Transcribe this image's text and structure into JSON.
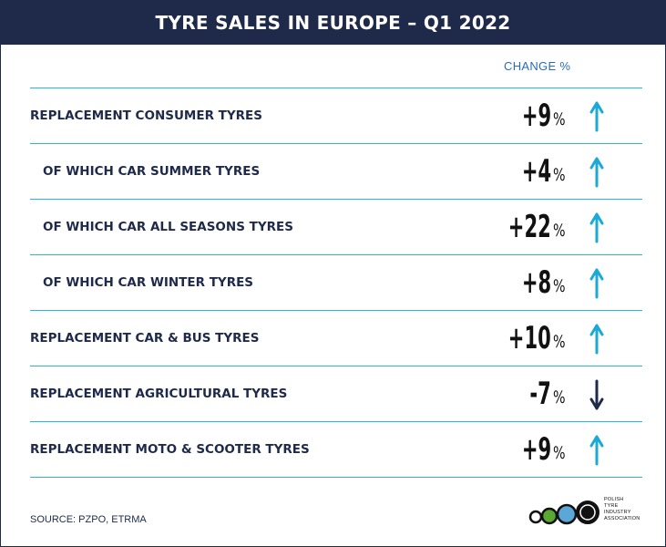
{
  "title": "TYRE SALES IN EUROPE – Q1 2022",
  "column_header": "CHANGE %",
  "rows": [
    {
      "label": "REPLACEMENT CONSUMER TYRES",
      "value": "+9",
      "unit": "%",
      "trend": "up",
      "indent": false
    },
    {
      "label": "OF WHICH CAR SUMMER TYRES",
      "value": "+4",
      "unit": "%",
      "trend": "up",
      "indent": true
    },
    {
      "label": "OF WHICH CAR ALL SEASONS TYRES",
      "value": "+22",
      "unit": "%",
      "trend": "up",
      "indent": true
    },
    {
      "label": "OF WHICH CAR WINTER TYRES",
      "value": "+8",
      "unit": "%",
      "trend": "up",
      "indent": true
    },
    {
      "label": "REPLACEMENT CAR & BUS TYRES",
      "value": "+10",
      "unit": "%",
      "trend": "up",
      "indent": false
    },
    {
      "label": "REPLACEMENT AGRICULTURAL TYRES",
      "value": "-7",
      "unit": "%",
      "trend": "down",
      "indent": false
    },
    {
      "label": "REPLACEMENT MOTO & SCOOTER TYRES",
      "value": "+9",
      "unit": "%",
      "trend": "up",
      "indent": false
    }
  ],
  "source": "SOURCE: PZPO, ETRMA",
  "logo": {
    "lines": [
      "POLISH",
      "TYRE",
      "INDUSTRY",
      "ASSOCIATION"
    ]
  },
  "colors": {
    "header_bg": "#1f2a4a",
    "divider": "#2bb5d9",
    "arrow_up": "#1ba9d6",
    "arrow_down": "#1f2a4a",
    "column_header": "#2a6db5"
  }
}
